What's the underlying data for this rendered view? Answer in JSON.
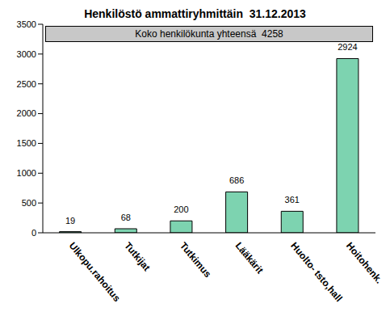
{
  "chart_data": {
    "type": "bar",
    "title": "Henkilöstö ammattiryhmittäin  31.12.2013",
    "annotation": "Koko henkilökunta yhteensä  4258",
    "categories": [
      "Ulkopu.rahoitus",
      "Tutkijat",
      "Tutkimus",
      "Lääkärit",
      "Huolto- tsto,hall",
      "Hoitohenk."
    ],
    "values": [
      19,
      68,
      200,
      686,
      361,
      2924
    ],
    "color": "#7dd3b0",
    "ylim": [
      0,
      3500
    ],
    "yticks": [
      0,
      500,
      1000,
      1500,
      2000,
      2500,
      3000,
      3500
    ],
    "grid": false,
    "data_labels": true
  }
}
